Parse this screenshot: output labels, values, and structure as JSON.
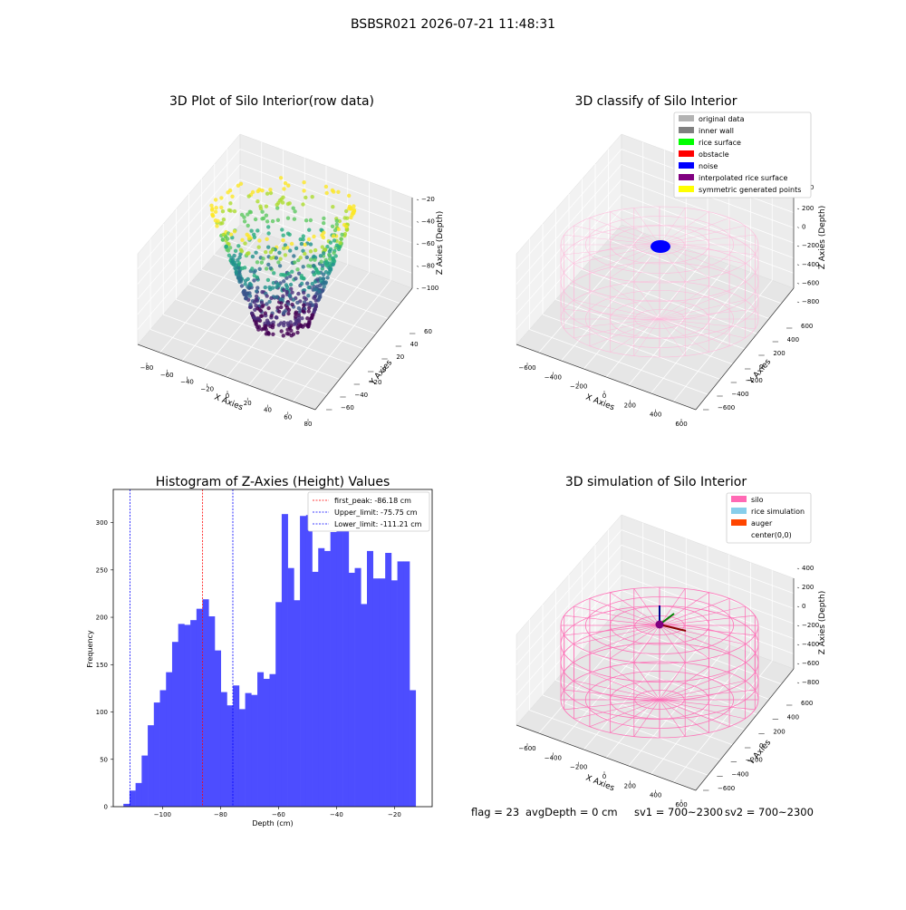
{
  "suptitle": "BSBSR021 2026-07-21 11:48:31",
  "panel1": {
    "title": "3D Plot of Silo Interior(row data)",
    "xlabel": "X Axies",
    "ylabel": "Y Axies",
    "zlabel": "Z Axies (Depth)",
    "xticks": [
      "−80",
      "−60",
      "−40",
      "−20",
      "0",
      "20",
      "40",
      "60",
      "80"
    ],
    "yticks": [
      "−60",
      "−40",
      "−20",
      "0",
      "20",
      "40",
      "60"
    ],
    "zticks": [
      "−20",
      "−40",
      "−60",
      "−80",
      "−100"
    ],
    "colormap": "viridis"
  },
  "panel2": {
    "title": "3D classify of Silo Interior",
    "xlabel": "X Axies",
    "ylabel": "Y Axies",
    "zlabel": "Z Axies (Depth)",
    "xticks": [
      "−600",
      "−400",
      "−200",
      "0",
      "200",
      "400",
      "600"
    ],
    "yticks": [
      "−600",
      "−400",
      "−200",
      "0",
      "200",
      "400",
      "600"
    ],
    "zticks": [
      "200",
      "0",
      "−200",
      "−400",
      "−600",
      "−800"
    ],
    "ztop_partial": "400",
    "legend": [
      {
        "label": "original data",
        "color": "#b3b3b3"
      },
      {
        "label": "inner wall",
        "color": "#808080"
      },
      {
        "label": "rice surface",
        "color": "#00ff00"
      },
      {
        "label": "obstacle",
        "color": "#ff0000"
      },
      {
        "label": "noise",
        "color": "#0000ff"
      },
      {
        "label": "interpolated rice surface",
        "color": "#800080"
      },
      {
        "label": "symmetric generated points",
        "color": "#ffff00"
      }
    ]
  },
  "panel3": {
    "title": "Histogram of Z-Axies (Height) Values",
    "xlabel": "Depth (cm)",
    "ylabel": "Frequency",
    "xticks": [
      "−100",
      "−80",
      "−60",
      "−40",
      "−20"
    ],
    "yticks": [
      "0",
      "50",
      "100",
      "150",
      "200",
      "250",
      "300"
    ],
    "legend": [
      {
        "label": "first_peak: -86.18 cm",
        "color": "#ff0000"
      },
      {
        "label": "Upper_limit: -75.75 cm",
        "color": "#0000ff"
      },
      {
        "label": "Lower_limit: -111.21 cm",
        "color": "#0000ff"
      }
    ]
  },
  "panel4": {
    "title": "3D simulation of Silo Interior",
    "xlabel": "X Axies",
    "ylabel": "Y Axies",
    "zlabel": "Z Axies (Depth)",
    "xticks": [
      "−600",
      "−400",
      "−200",
      "0",
      "200",
      "400",
      "600"
    ],
    "yticks": [
      "−600",
      "−400",
      "−200",
      "0",
      "200",
      "400",
      "600"
    ],
    "zticks": [
      "400",
      "200",
      "0",
      "−200",
      "−400",
      "−600",
      "−800"
    ],
    "legend": [
      {
        "label": "silo",
        "color": "#ff69b4"
      },
      {
        "label": "rice simulation",
        "color": "#87ceeb"
      },
      {
        "label": "auger",
        "color": "#ff4500"
      },
      {
        "label": "center(0,0)",
        "color": "#ffffff"
      }
    ]
  },
  "footer": {
    "flag": "flag = 23",
    "avg": "avgDepth = 0 cm",
    "sv1": "sv1 = 700~2300",
    "sv2": "sv2 = 700~2300"
  },
  "colors": {
    "histogram_bar": "#4d4dff",
    "silo_wire": "#ff69b4",
    "classify_wire": "#ffb6d9"
  },
  "chart_data": [
    {
      "type": "scatter",
      "title": "3D Plot of Silo Interior(row data)",
      "xlabel": "X Axies",
      "ylabel": "Y Axies",
      "zlabel": "Z Axies (Depth)",
      "xlim": [
        -80,
        80
      ],
      "ylim": [
        -60,
        60
      ],
      "zlim": [
        -110,
        -15
      ],
      "description_note": "",
      "color_by": "z (viridis)"
    },
    {
      "type": "scatter",
      "title": "3D classify of Silo Interior",
      "xlim": [
        -600,
        600
      ],
      "ylim": [
        -600,
        600
      ],
      "zlim": [
        -800,
        400
      ],
      "series": [
        {
          "name": "noise",
          "points_region": "cluster near x≈-100, z≈0"
        }
      ]
    },
    {
      "type": "bar",
      "title": "Histogram of Z-Axies (Height) Values",
      "xlabel": "Depth (cm)",
      "ylabel": "Frequency",
      "xlim": [
        -117,
        -7
      ],
      "ylim": [
        0,
        335
      ],
      "bin_start": -113.5,
      "bin_width": 2.1,
      "values": [
        3,
        17,
        25,
        54,
        86,
        110,
        123,
        142,
        174,
        193,
        192,
        197,
        209,
        219,
        201,
        165,
        121,
        107,
        128,
        103,
        120,
        118,
        142,
        135,
        140,
        216,
        309,
        252,
        218,
        307,
        308,
        248,
        273,
        270,
        290,
        318,
        299,
        247,
        252,
        214,
        270,
        241,
        241,
        268,
        239,
        259,
        259,
        123
      ],
      "vlines": [
        {
          "name": "first_peak: -86.18 cm",
          "x": -86.18,
          "color": "#ff0000"
        },
        {
          "name": "Upper_limit: -75.75 cm",
          "x": -75.75,
          "color": "#0000ff"
        },
        {
          "name": "Lower_limit: -111.21 cm",
          "x": -111.21,
          "color": "#0000ff"
        }
      ]
    },
    {
      "type": "scatter",
      "title": "3D simulation of Silo Interior",
      "xlim": [
        -600,
        600
      ],
      "ylim": [
        -600,
        600
      ],
      "zlim": [
        -800,
        400
      ],
      "series": [
        {
          "name": "silo"
        },
        {
          "name": "rice simulation"
        },
        {
          "name": "auger"
        },
        {
          "name": "center(0,0)"
        }
      ]
    }
  ]
}
